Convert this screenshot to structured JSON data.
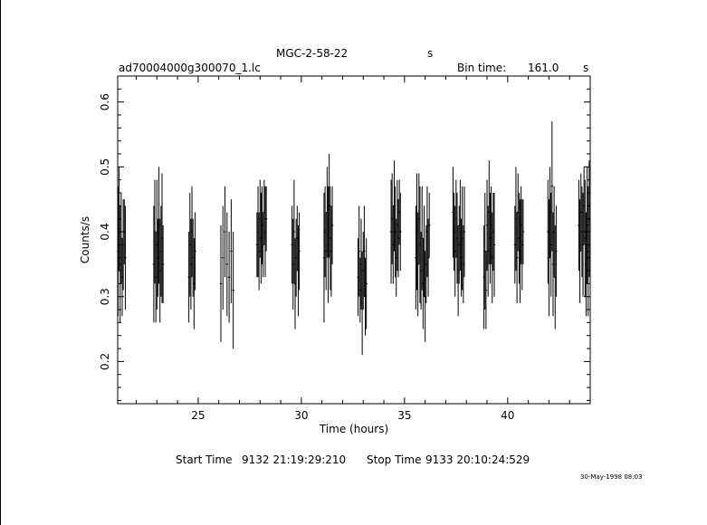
{
  "header": {
    "object_name": "MGC-2-58-22",
    "object_unit": "s",
    "file_name": "ad70004000g300070_1.lc",
    "bin_time_label": "Bin time:",
    "bin_time_value": "161.0",
    "bin_time_unit": "s"
  },
  "footer": {
    "start_label": "Start Time",
    "start_value": "9132 21:19:29:210",
    "stop_label": "Stop Time",
    "stop_value": "9133 20:10:24:529",
    "date_stamp": "30-May-1998 08:03"
  },
  "colors": {
    "ink": "#000000",
    "background": "#ffffff"
  },
  "chart_data": {
    "type": "scatter",
    "xlabel": "Time (hours)",
    "ylabel": "Counts/s",
    "xlim": [
      21.1,
      44.0
    ],
    "ylim": [
      0.135,
      0.64
    ],
    "xticks": [
      25,
      30,
      35,
      40
    ],
    "yticks": [
      0.2,
      0.3,
      0.4,
      0.5,
      0.6
    ],
    "ytick_labels": [
      "0.2",
      "0.3",
      "0.4",
      "0.5",
      "0.6"
    ],
    "xtick_labels": [
      "25",
      "30",
      "35",
      "40"
    ],
    "grid": false,
    "error_bars": "vertical",
    "series": [
      {
        "points": [
          [
            21.12,
            0.37,
            0.1
          ],
          [
            21.17,
            0.42,
            0.08
          ],
          [
            21.22,
            0.35,
            0.09
          ],
          [
            21.27,
            0.39,
            0.07
          ],
          [
            21.32,
            0.33,
            0.06
          ],
          [
            21.37,
            0.38,
            0.07
          ],
          [
            21.42,
            0.4,
            0.05
          ],
          [
            21.47,
            0.36,
            0.08
          ],
          [
            22.85,
            0.35,
            0.09
          ],
          [
            22.9,
            0.4,
            0.08
          ],
          [
            22.95,
            0.33,
            0.07
          ],
          [
            23.0,
            0.38,
            0.1
          ],
          [
            23.05,
            0.36,
            0.06
          ],
          [
            23.1,
            0.41,
            0.09
          ],
          [
            23.15,
            0.34,
            0.08
          ],
          [
            23.2,
            0.37,
            0.07
          ],
          [
            23.25,
            0.39,
            0.1
          ],
          [
            23.3,
            0.35,
            0.06
          ],
          [
            24.55,
            0.33,
            0.07
          ],
          [
            24.6,
            0.38,
            0.08
          ],
          [
            24.65,
            0.35,
            0.07
          ],
          [
            24.7,
            0.4,
            0.07
          ],
          [
            24.75,
            0.36,
            0.06
          ],
          [
            24.8,
            0.32,
            0.07
          ],
          [
            24.85,
            0.37,
            0.06
          ],
          [
            26.1,
            0.32,
            0.09
          ],
          [
            26.2,
            0.36,
            0.08
          ],
          [
            26.3,
            0.4,
            0.07
          ],
          [
            26.4,
            0.35,
            0.08
          ],
          [
            26.5,
            0.33,
            0.07
          ],
          [
            26.6,
            0.37,
            0.08
          ],
          [
            26.7,
            0.31,
            0.09
          ],
          [
            27.85,
            0.38,
            0.05
          ],
          [
            27.9,
            0.4,
            0.07
          ],
          [
            27.95,
            0.37,
            0.06
          ],
          [
            28.0,
            0.42,
            0.06
          ],
          [
            28.05,
            0.39,
            0.07
          ],
          [
            28.1,
            0.41,
            0.06
          ],
          [
            28.15,
            0.38,
            0.05
          ],
          [
            28.2,
            0.43,
            0.05
          ],
          [
            28.25,
            0.4,
            0.07
          ],
          [
            28.3,
            0.42,
            0.05
          ],
          [
            29.55,
            0.38,
            0.06
          ],
          [
            29.6,
            0.35,
            0.07
          ],
          [
            29.65,
            0.4,
            0.08
          ],
          [
            29.7,
            0.32,
            0.07
          ],
          [
            29.75,
            0.36,
            0.06
          ],
          [
            29.8,
            0.39,
            0.05
          ],
          [
            29.85,
            0.34,
            0.07
          ],
          [
            29.9,
            0.37,
            0.06
          ],
          [
            31.1,
            0.36,
            0.1
          ],
          [
            31.15,
            0.4,
            0.07
          ],
          [
            31.2,
            0.37,
            0.06
          ],
          [
            31.25,
            0.43,
            0.07
          ],
          [
            31.3,
            0.38,
            0.09
          ],
          [
            31.35,
            0.44,
            0.08
          ],
          [
            31.4,
            0.39,
            0.08
          ],
          [
            31.45,
            0.37,
            0.07
          ],
          [
            31.5,
            0.41,
            0.06
          ],
          [
            32.75,
            0.33,
            0.06
          ],
          [
            32.8,
            0.37,
            0.07
          ],
          [
            32.85,
            0.31,
            0.05
          ],
          [
            32.9,
            0.35,
            0.07
          ],
          [
            32.95,
            0.29,
            0.08
          ],
          [
            33.0,
            0.34,
            0.06
          ],
          [
            33.05,
            0.37,
            0.07
          ],
          [
            33.1,
            0.3,
            0.06
          ],
          [
            33.15,
            0.32,
            0.07
          ],
          [
            34.35,
            0.4,
            0.08
          ],
          [
            34.4,
            0.42,
            0.07
          ],
          [
            34.45,
            0.38,
            0.06
          ],
          [
            34.5,
            0.44,
            0.07
          ],
          [
            34.55,
            0.4,
            0.07
          ],
          [
            34.6,
            0.36,
            0.06
          ],
          [
            34.65,
            0.41,
            0.07
          ],
          [
            34.7,
            0.39,
            0.06
          ],
          [
            34.75,
            0.43,
            0.05
          ],
          [
            34.8,
            0.4,
            0.06
          ],
          [
            35.55,
            0.36,
            0.08
          ],
          [
            35.6,
            0.4,
            0.09
          ],
          [
            35.65,
            0.35,
            0.08
          ],
          [
            35.7,
            0.42,
            0.07
          ],
          [
            35.75,
            0.38,
            0.09
          ],
          [
            35.8,
            0.34,
            0.06
          ],
          [
            35.85,
            0.39,
            0.08
          ],
          [
            35.9,
            0.32,
            0.07
          ],
          [
            35.95,
            0.37,
            0.07
          ],
          [
            36.0,
            0.3,
            0.07
          ],
          [
            36.05,
            0.35,
            0.06
          ],
          [
            36.1,
            0.4,
            0.07
          ],
          [
            36.15,
            0.36,
            0.06
          ],
          [
            36.2,
            0.41,
            0.05
          ],
          [
            37.35,
            0.43,
            0.07
          ],
          [
            37.4,
            0.4,
            0.06
          ],
          [
            37.45,
            0.37,
            0.07
          ],
          [
            37.5,
            0.42,
            0.06
          ],
          [
            37.55,
            0.39,
            0.07
          ],
          [
            37.6,
            0.34,
            0.07
          ],
          [
            37.65,
            0.38,
            0.06
          ],
          [
            37.7,
            0.41,
            0.07
          ],
          [
            37.75,
            0.36,
            0.06
          ],
          [
            37.8,
            0.39,
            0.08
          ],
          [
            37.85,
            0.35,
            0.06
          ],
          [
            37.9,
            0.4,
            0.07
          ],
          [
            38.85,
            0.33,
            0.08
          ],
          [
            38.9,
            0.37,
            0.09
          ],
          [
            38.95,
            0.31,
            0.06
          ],
          [
            39.0,
            0.41,
            0.07
          ],
          [
            39.05,
            0.37,
            0.07
          ],
          [
            39.1,
            0.43,
            0.08
          ],
          [
            39.15,
            0.39,
            0.07
          ],
          [
            39.2,
            0.41,
            0.06
          ],
          [
            39.25,
            0.36,
            0.07
          ],
          [
            39.3,
            0.4,
            0.06
          ],
          [
            39.35,
            0.38,
            0.08
          ],
          [
            40.35,
            0.38,
            0.06
          ],
          [
            40.4,
            0.42,
            0.08
          ],
          [
            40.45,
            0.36,
            0.07
          ],
          [
            40.5,
            0.43,
            0.06
          ],
          [
            40.55,
            0.39,
            0.07
          ],
          [
            40.6,
            0.37,
            0.08
          ],
          [
            40.65,
            0.41,
            0.06
          ],
          [
            40.7,
            0.38,
            0.07
          ],
          [
            40.75,
            0.4,
            0.05
          ],
          [
            41.95,
            0.4,
            0.08
          ],
          [
            42.0,
            0.36,
            0.09
          ],
          [
            42.05,
            0.43,
            0.07
          ],
          [
            42.1,
            0.38,
            0.08
          ],
          [
            42.15,
            0.47,
            0.1
          ],
          [
            42.2,
            0.35,
            0.08
          ],
          [
            42.25,
            0.4,
            0.07
          ],
          [
            42.3,
            0.33,
            0.08
          ],
          [
            42.35,
            0.37,
            0.07
          ],
          [
            43.45,
            0.41,
            0.07
          ],
          [
            43.5,
            0.37,
            0.08
          ],
          [
            43.55,
            0.43,
            0.06
          ],
          [
            43.6,
            0.4,
            0.07
          ],
          [
            43.65,
            0.38,
            0.08
          ],
          [
            43.7,
            0.44,
            0.06
          ],
          [
            43.75,
            0.39,
            0.09
          ],
          [
            43.8,
            0.35,
            0.08
          ],
          [
            43.85,
            0.41,
            0.09
          ],
          [
            43.9,
            0.37,
            0.1
          ],
          [
            43.95,
            0.42,
            0.09
          ]
        ]
      }
    ]
  }
}
